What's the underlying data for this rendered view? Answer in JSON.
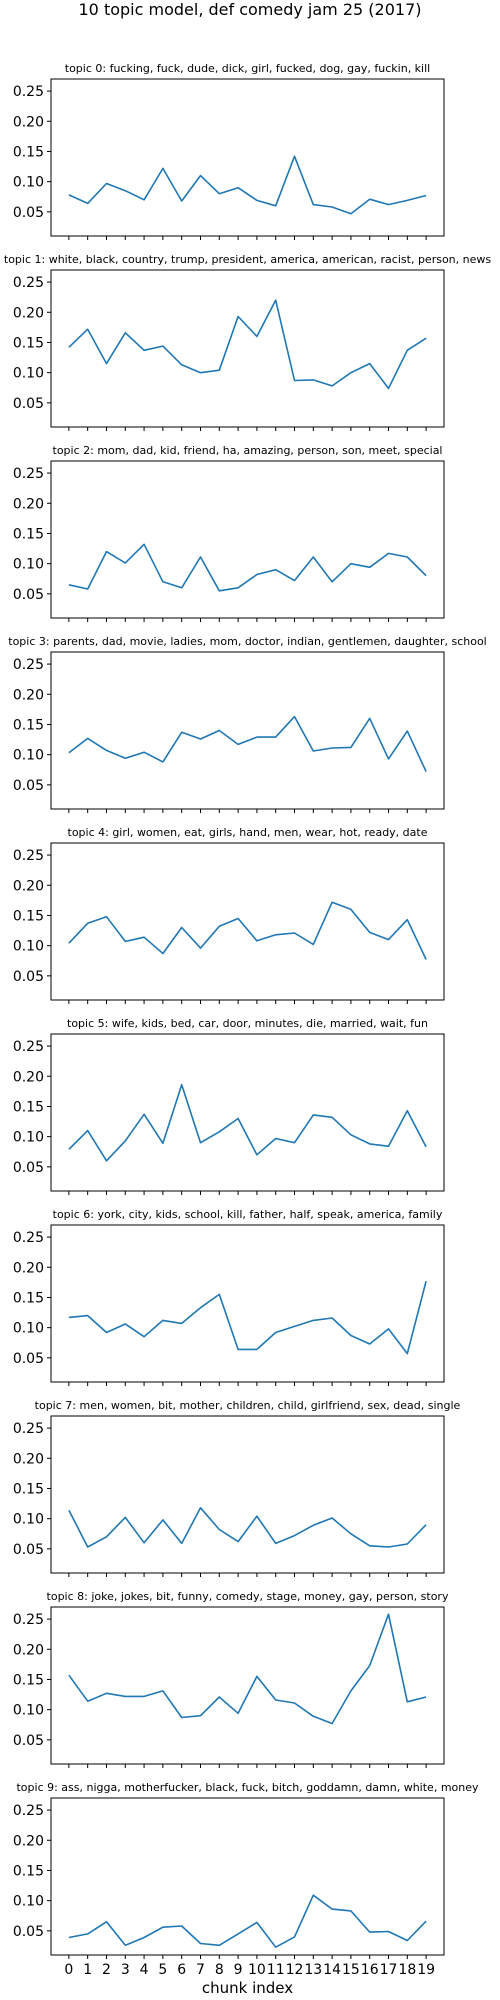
{
  "figure": {
    "suptitle": "10 topic model, def comedy jam 25 (2017)"
  },
  "chart_data": [
    {
      "type": "line",
      "title": "topic 0: fucking, fuck, dude, dick, girl, fucked, dog, gay, fuckin, kill",
      "x": [
        0,
        1,
        2,
        3,
        4,
        5,
        6,
        7,
        8,
        9,
        10,
        11,
        12,
        13,
        14,
        15,
        16,
        17,
        18,
        19
      ],
      "y": [
        0.078,
        0.064,
        0.097,
        0.085,
        0.07,
        0.122,
        0.068,
        0.11,
        0.08,
        0.09,
        0.069,
        0.06,
        0.142,
        0.062,
        0.058,
        0.047,
        0.071,
        0.062,
        0.069,
        0.077
      ],
      "ylim": [
        0.01,
        0.27
      ],
      "yticks": [
        0.05,
        0.1,
        0.15,
        0.2,
        0.25
      ],
      "ytick_labels": [
        "0.05",
        "0.10",
        "0.15",
        "0.20",
        "0.25"
      ],
      "color": "#1f77b4"
    },
    {
      "type": "line",
      "title": "topic 1: white, black, country, trump, president, america, american, racist, person, news",
      "x": [
        0,
        1,
        2,
        3,
        4,
        5,
        6,
        7,
        8,
        9,
        10,
        11,
        12,
        13,
        14,
        15,
        16,
        17,
        18,
        19
      ],
      "y": [
        0.142,
        0.172,
        0.115,
        0.166,
        0.137,
        0.144,
        0.113,
        0.1,
        0.104,
        0.193,
        0.16,
        0.22,
        0.087,
        0.088,
        0.078,
        0.1,
        0.115,
        0.074,
        0.137,
        0.157
      ],
      "ylim": [
        0.01,
        0.27
      ],
      "yticks": [
        0.05,
        0.1,
        0.15,
        0.2,
        0.25
      ],
      "ytick_labels": [
        "0.05",
        "0.10",
        "0.15",
        "0.20",
        "0.25"
      ],
      "color": "#1f77b4"
    },
    {
      "type": "line",
      "title": "topic 2: mom, dad, kid, friend, ha, amazing, person, son, meet, special",
      "x": [
        0,
        1,
        2,
        3,
        4,
        5,
        6,
        7,
        8,
        9,
        10,
        11,
        12,
        13,
        14,
        15,
        16,
        17,
        18,
        19
      ],
      "y": [
        0.065,
        0.058,
        0.12,
        0.101,
        0.132,
        0.07,
        0.06,
        0.111,
        0.055,
        0.06,
        0.082,
        0.09,
        0.072,
        0.111,
        0.07,
        0.1,
        0.094,
        0.117,
        0.111,
        0.08
      ],
      "ylim": [
        0.01,
        0.27
      ],
      "yticks": [
        0.05,
        0.1,
        0.15,
        0.2,
        0.25
      ],
      "ytick_labels": [
        "0.05",
        "0.10",
        "0.15",
        "0.20",
        "0.25"
      ],
      "color": "#1f77b4"
    },
    {
      "type": "line",
      "title": "topic 3: parents, dad, movie, ladies, mom, doctor, indian, gentlemen, daughter, school",
      "x": [
        0,
        1,
        2,
        3,
        4,
        5,
        6,
        7,
        8,
        9,
        10,
        11,
        12,
        13,
        14,
        15,
        16,
        17,
        18,
        19
      ],
      "y": [
        0.103,
        0.127,
        0.107,
        0.094,
        0.104,
        0.088,
        0.137,
        0.126,
        0.14,
        0.117,
        0.129,
        0.129,
        0.163,
        0.106,
        0.111,
        0.112,
        0.16,
        0.093,
        0.139,
        0.072
      ],
      "ylim": [
        0.01,
        0.27
      ],
      "yticks": [
        0.05,
        0.1,
        0.15,
        0.2,
        0.25
      ],
      "ytick_labels": [
        "0.05",
        "0.10",
        "0.15",
        "0.20",
        "0.25"
      ],
      "color": "#1f77b4"
    },
    {
      "type": "line",
      "title": "topic 4: girl, women, eat, girls, hand, men, wear, hot, ready, date",
      "x": [
        0,
        1,
        2,
        3,
        4,
        5,
        6,
        7,
        8,
        9,
        10,
        11,
        12,
        13,
        14,
        15,
        16,
        17,
        18,
        19
      ],
      "y": [
        0.104,
        0.137,
        0.148,
        0.107,
        0.114,
        0.087,
        0.13,
        0.096,
        0.132,
        0.145,
        0.108,
        0.118,
        0.121,
        0.102,
        0.172,
        0.16,
        0.122,
        0.11,
        0.143,
        0.077
      ],
      "ylim": [
        0.01,
        0.27
      ],
      "yticks": [
        0.05,
        0.1,
        0.15,
        0.2,
        0.25
      ],
      "ytick_labels": [
        "0.05",
        "0.10",
        "0.15",
        "0.20",
        "0.25"
      ],
      "color": "#1f77b4"
    },
    {
      "type": "line",
      "title": "topic 5: wife, kids, bed, car, door, minutes, die, married, wait, fun",
      "x": [
        0,
        1,
        2,
        3,
        4,
        5,
        6,
        7,
        8,
        9,
        10,
        11,
        12,
        13,
        14,
        15,
        16,
        17,
        18,
        19
      ],
      "y": [
        0.079,
        0.11,
        0.06,
        0.093,
        0.137,
        0.089,
        0.186,
        0.09,
        0.108,
        0.13,
        0.07,
        0.097,
        0.09,
        0.136,
        0.132,
        0.103,
        0.088,
        0.084,
        0.143,
        0.083
      ],
      "ylim": [
        0.01,
        0.27
      ],
      "yticks": [
        0.05,
        0.1,
        0.15,
        0.2,
        0.25
      ],
      "ytick_labels": [
        "0.05",
        "0.10",
        "0.15",
        "0.20",
        "0.25"
      ],
      "color": "#1f77b4"
    },
    {
      "type": "line",
      "title": "topic 6: york, city, kids, school, kill, father, half, speak, america, family",
      "x": [
        0,
        1,
        2,
        3,
        4,
        5,
        6,
        7,
        8,
        9,
        10,
        11,
        12,
        13,
        14,
        15,
        16,
        17,
        18,
        19
      ],
      "y": [
        0.117,
        0.12,
        0.092,
        0.106,
        0.085,
        0.112,
        0.107,
        0.133,
        0.155,
        0.064,
        0.064,
        0.092,
        0.102,
        0.112,
        0.116,
        0.087,
        0.073,
        0.098,
        0.057,
        0.177
      ],
      "ylim": [
        0.01,
        0.27
      ],
      "yticks": [
        0.05,
        0.1,
        0.15,
        0.2,
        0.25
      ],
      "ytick_labels": [
        "0.05",
        "0.10",
        "0.15",
        "0.20",
        "0.25"
      ],
      "color": "#1f77b4"
    },
    {
      "type": "line",
      "title": "topic 7: men, women, bit, mother, children, child, girlfriend, sex, dead, single",
      "x": [
        0,
        1,
        2,
        3,
        4,
        5,
        6,
        7,
        8,
        9,
        10,
        11,
        12,
        13,
        14,
        15,
        16,
        17,
        18,
        19
      ],
      "y": [
        0.114,
        0.053,
        0.07,
        0.102,
        0.06,
        0.098,
        0.059,
        0.118,
        0.082,
        0.062,
        0.104,
        0.059,
        0.072,
        0.089,
        0.101,
        0.075,
        0.055,
        0.053,
        0.058,
        0.09
      ],
      "ylim": [
        0.01,
        0.27
      ],
      "yticks": [
        0.05,
        0.1,
        0.15,
        0.2,
        0.25
      ],
      "ytick_labels": [
        "0.05",
        "0.10",
        "0.15",
        "0.20",
        "0.25"
      ],
      "color": "#1f77b4"
    },
    {
      "type": "line",
      "title": "topic 8: joke, jokes, bit, funny, comedy, stage, money, gay, person, story",
      "x": [
        0,
        1,
        2,
        3,
        4,
        5,
        6,
        7,
        8,
        9,
        10,
        11,
        12,
        13,
        14,
        15,
        16,
        17,
        18,
        19
      ],
      "y": [
        0.157,
        0.114,
        0.127,
        0.122,
        0.122,
        0.131,
        0.087,
        0.09,
        0.121,
        0.094,
        0.155,
        0.116,
        0.111,
        0.089,
        0.077,
        0.131,
        0.173,
        0.258,
        0.113,
        0.121
      ],
      "ylim": [
        0.01,
        0.27
      ],
      "yticks": [
        0.05,
        0.1,
        0.15,
        0.2,
        0.25
      ],
      "ytick_labels": [
        "0.05",
        "0.10",
        "0.15",
        "0.20",
        "0.25"
      ],
      "color": "#1f77b4"
    },
    {
      "type": "line",
      "title": "topic 9: ass, nigga, motherfucker, black, fuck, bitch, goddamn, damn, white, money",
      "x": [
        0,
        1,
        2,
        3,
        4,
        5,
        6,
        7,
        8,
        9,
        10,
        11,
        12,
        13,
        14,
        15,
        16,
        17,
        18,
        19
      ],
      "y": [
        0.039,
        0.045,
        0.065,
        0.026,
        0.039,
        0.056,
        0.058,
        0.029,
        0.026,
        0.045,
        0.064,
        0.023,
        0.04,
        0.109,
        0.086,
        0.083,
        0.048,
        0.049,
        0.034,
        0.066
      ],
      "ylim": [
        0.01,
        0.27
      ],
      "yticks": [
        0.05,
        0.1,
        0.15,
        0.2,
        0.25
      ],
      "ytick_labels": [
        "0.05",
        "0.10",
        "0.15",
        "0.20",
        "0.25"
      ],
      "color": "#1f77b4",
      "xlabel": "chunk index",
      "xtick_labels": [
        "0",
        "1",
        "2",
        "3",
        "4",
        "5",
        "6",
        "7",
        "8",
        "9",
        "10",
        "11",
        "12",
        "13",
        "14",
        "15",
        "16",
        "17",
        "18",
        "19"
      ]
    }
  ]
}
